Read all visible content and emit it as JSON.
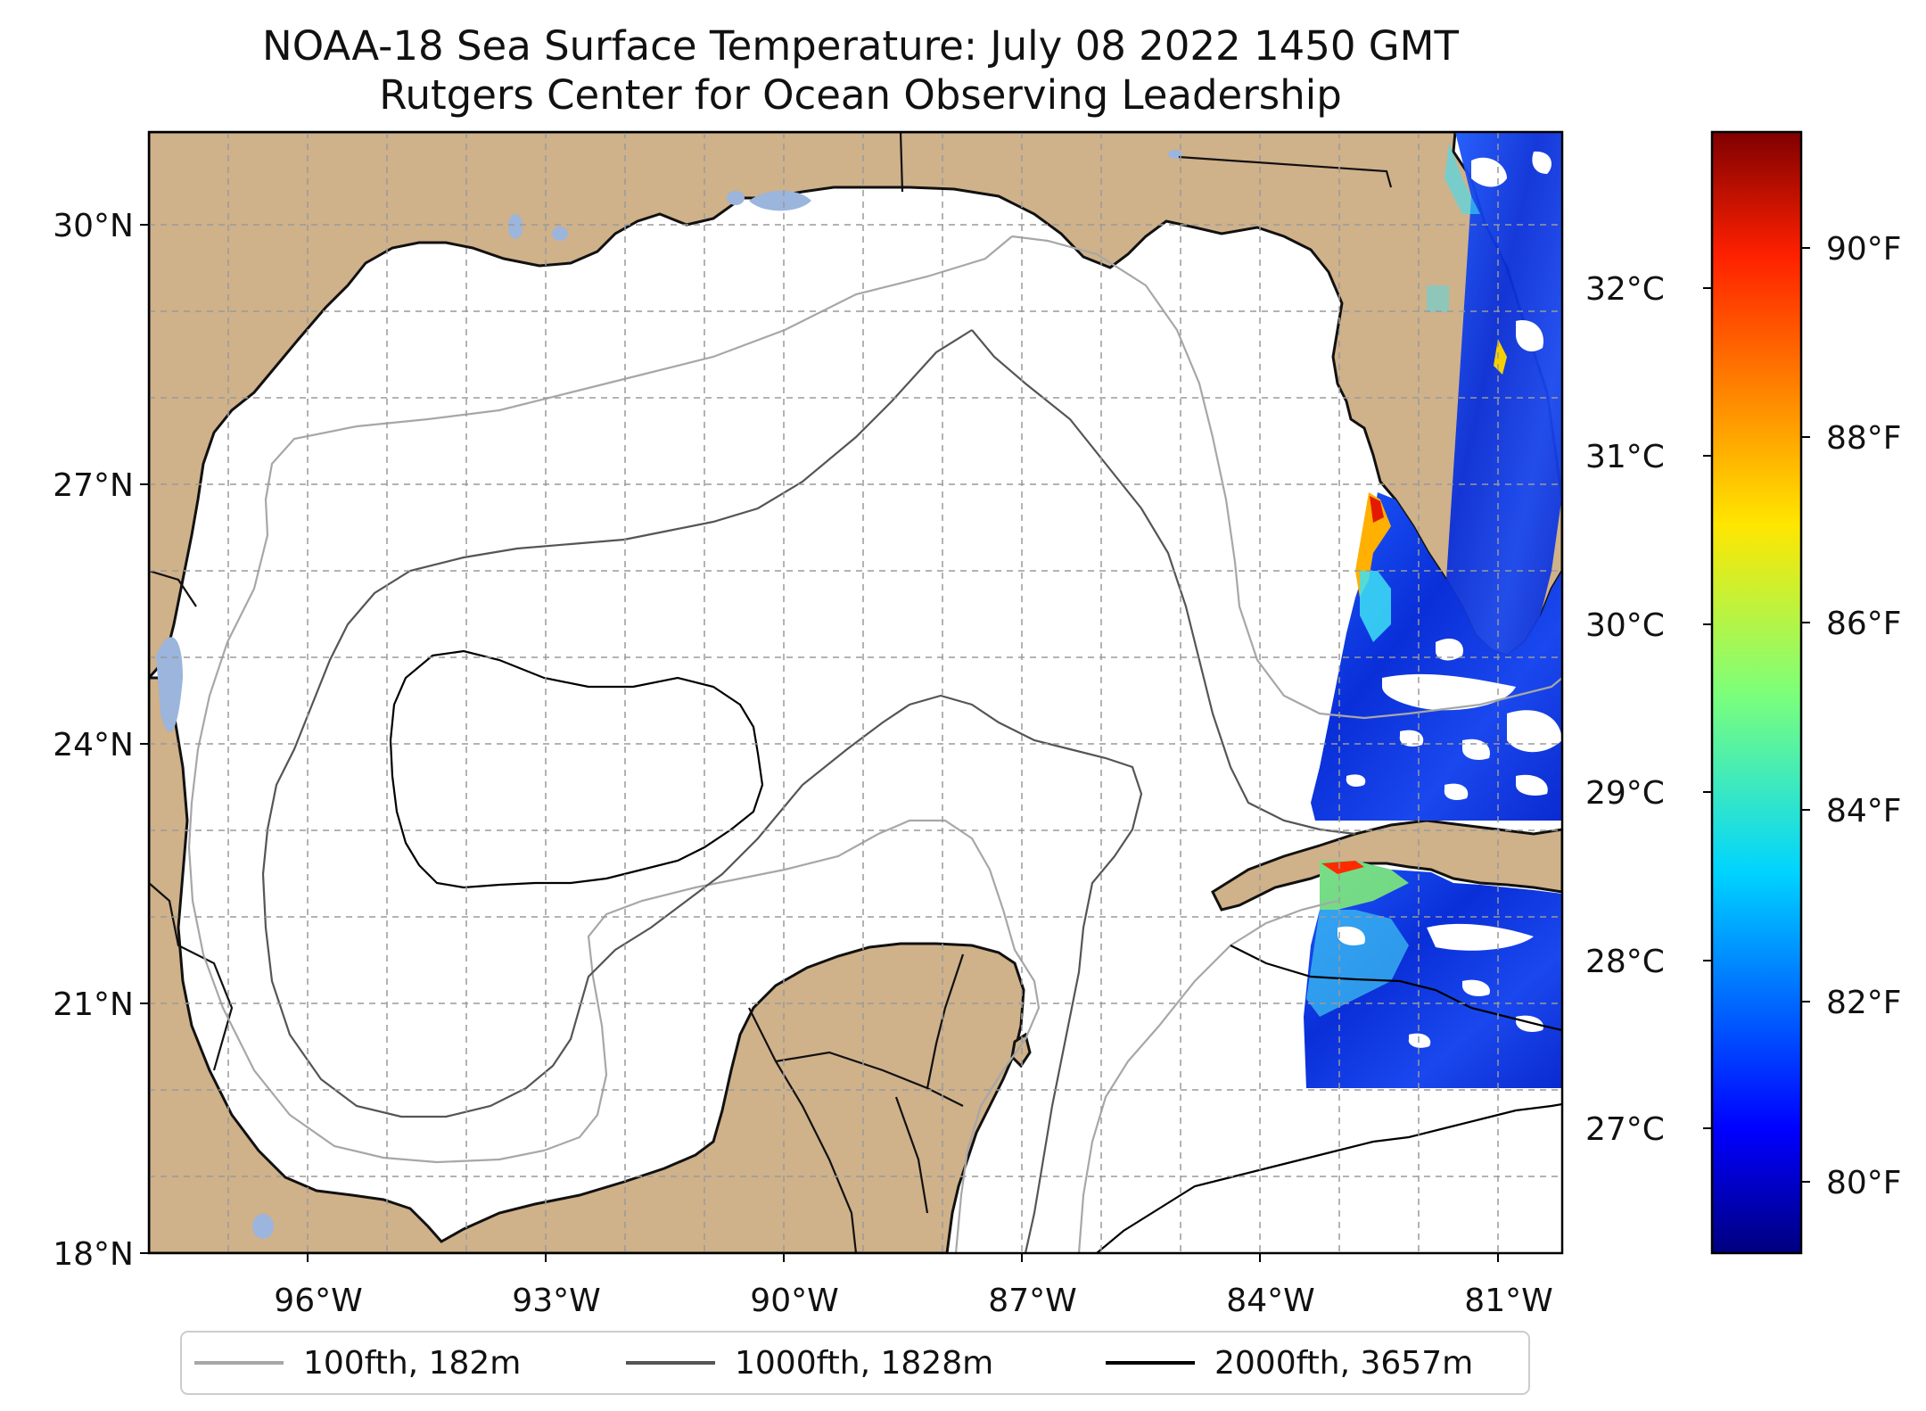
{
  "title_line1": "NOAA-18 Sea Surface Temperature: July 08 2022 1450 GMT",
  "title_line2": "Rutgers Center for Ocean Observing Leadership",
  "map": {
    "lon_range": [
      -98.3,
      -80.5
    ],
    "lat_range": [
      18.0,
      31.0
    ],
    "lat_ticks": [
      {
        "value": 18,
        "label": "18°N"
      },
      {
        "value": 21,
        "label": "21°N"
      },
      {
        "value": 24,
        "label": "24°N"
      },
      {
        "value": 27,
        "label": "27°N"
      },
      {
        "value": 30,
        "label": "30°N"
      }
    ],
    "lon_ticks": [
      {
        "value": -96,
        "label": "96°W"
      },
      {
        "value": -93,
        "label": "93°W"
      },
      {
        "value": -90,
        "label": "90°W"
      },
      {
        "value": -87,
        "label": "87°W"
      },
      {
        "value": -84,
        "label": "84°W"
      },
      {
        "value": -81,
        "label": "81°W"
      }
    ],
    "gridlines": "on",
    "land_color": "#cfb18a",
    "water_color": "#9bb5dd"
  },
  "colorbar": {
    "colormap": "jet",
    "celsius_ticks": [
      {
        "value": 27,
        "label": "27°C"
      },
      {
        "value": 28,
        "label": "28°C"
      },
      {
        "value": 29,
        "label": "29°C"
      },
      {
        "value": 30,
        "label": "30°C"
      },
      {
        "value": 31,
        "label": "31°C"
      },
      {
        "value": 32,
        "label": "32°C"
      }
    ],
    "fahrenheit_ticks": [
      {
        "value": 80,
        "label": "80°F"
      },
      {
        "value": 82,
        "label": "82°F"
      },
      {
        "value": 84,
        "label": "84°F"
      },
      {
        "value": 86,
        "label": "86°F"
      },
      {
        "value": 88,
        "label": "88°F"
      },
      {
        "value": 90,
        "label": "90°F"
      }
    ],
    "range_f": [
      79,
      91.5
    ]
  },
  "legend": {
    "entries": [
      {
        "label": "100fth, 182m",
        "color": "#a7a7a7"
      },
      {
        "label": "1000fth, 1828m",
        "color": "#555555"
      },
      {
        "label": "2000fth, 3657m",
        "color": "#000000"
      }
    ]
  }
}
